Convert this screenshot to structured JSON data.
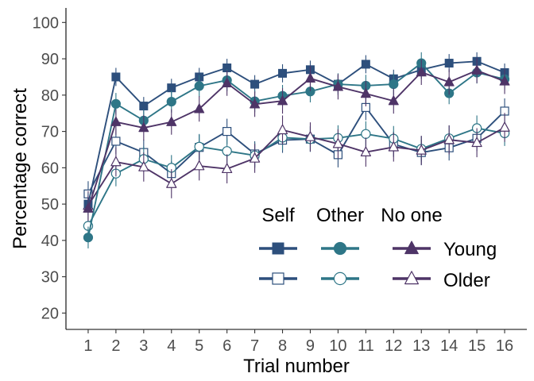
{
  "chart_data": {
    "type": "line",
    "title": "",
    "xlabel": "Trial number",
    "ylabel": "Percentage correct",
    "x": [
      1,
      2,
      3,
      4,
      5,
      6,
      7,
      8,
      9,
      10,
      11,
      12,
      13,
      14,
      15,
      16
    ],
    "xlim": [
      0.2,
      16.8
    ],
    "ylim": [
      15.5,
      104
    ],
    "yticks": [
      20,
      30,
      40,
      50,
      60,
      70,
      80,
      90,
      100
    ],
    "grid": false,
    "error_bars": true,
    "legend": {
      "placement": "bottom-right",
      "column_headers": [
        "Self",
        "Other",
        "No one"
      ],
      "row_labels": [
        "Young",
        "Older"
      ]
    },
    "colors": {
      "self": "#2d4f7c",
      "other": "#2e7687",
      "noone": "#4e3467"
    },
    "series": [
      {
        "key": "self-young",
        "group": "Self",
        "age": "Young",
        "marker": "square",
        "filled": true,
        "values": [
          50,
          85,
          77,
          82,
          85,
          87.5,
          83,
          86,
          87,
          83,
          88.5,
          84.5,
          87,
          88.8,
          89.3,
          86.2
        ],
        "err": [
          3,
          2.5,
          2.5,
          2.5,
          2.5,
          2.5,
          2.5,
          2.5,
          2.5,
          2.5,
          2.5,
          2.5,
          2.5,
          2.5,
          2.5,
          2.5
        ]
      },
      {
        "key": "other-young",
        "group": "Other",
        "age": "Young",
        "marker": "circle",
        "filled": true,
        "values": [
          40.8,
          77.6,
          73,
          78.2,
          82.5,
          84.1,
          78.3,
          79.8,
          81,
          83,
          82.6,
          83,
          88.8,
          80.5,
          86.2,
          84.4
        ],
        "err": [
          3,
          3,
          3,
          3,
          3,
          3,
          3,
          3,
          3,
          3,
          3,
          3,
          3,
          3,
          3,
          3
        ]
      },
      {
        "key": "noone-young",
        "group": "No one",
        "age": "Young",
        "marker": "triangle",
        "filled": true,
        "values": [
          48.8,
          72.6,
          71,
          72.6,
          76.2,
          83.3,
          77.5,
          78.4,
          84.6,
          82.3,
          80.4,
          78.4,
          86.3,
          83.6,
          86.8,
          83.8
        ],
        "err": [
          3.5,
          3.5,
          3.5,
          3.5,
          3.5,
          3.5,
          3.5,
          3.5,
          3.5,
          3.5,
          3.5,
          3.5,
          3.5,
          3.5,
          3.5,
          3.5
        ]
      },
      {
        "key": "self-older",
        "group": "Self",
        "age": "Older",
        "marker": "square",
        "filled": false,
        "values": [
          52.8,
          67.3,
          64.2,
          58.4,
          65.6,
          70,
          63.8,
          67.6,
          67.9,
          63.6,
          76.6,
          66.5,
          64.2,
          65.5,
          68.1,
          75.6
        ],
        "err": [
          3.5,
          3.5,
          3.5,
          3.5,
          3.5,
          3.5,
          3.5,
          3.5,
          3.5,
          3.5,
          3.5,
          3.5,
          3.5,
          3.5,
          3.5,
          3.5
        ]
      },
      {
        "key": "other-older",
        "group": "Other",
        "age": "Older",
        "marker": "circle",
        "filled": false,
        "values": [
          44,
          58.4,
          62.4,
          60,
          65.8,
          64.6,
          63.4,
          68.3,
          67.9,
          68.2,
          69.3,
          68,
          65.2,
          68.1,
          70.9,
          69.5
        ],
        "err": [
          3.5,
          3.5,
          3.5,
          3.5,
          3.5,
          3.5,
          3.5,
          3.5,
          3.5,
          3.5,
          3.5,
          3.5,
          3.5,
          3.5,
          3.5,
          3.5
        ]
      },
      {
        "key": "noone-older",
        "group": "No one",
        "age": "Older",
        "marker": "triangle",
        "filled": false,
        "values": [
          49.6,
          61.6,
          60.2,
          55.6,
          60.5,
          59.7,
          62.6,
          70.4,
          68.5,
          66.6,
          64.3,
          65.7,
          64.8,
          67.7,
          66.9,
          71.1
        ],
        "err": [
          4,
          4,
          4,
          4,
          4,
          4,
          4,
          4,
          4,
          4,
          4,
          4,
          4,
          4,
          4,
          4
        ]
      }
    ]
  }
}
